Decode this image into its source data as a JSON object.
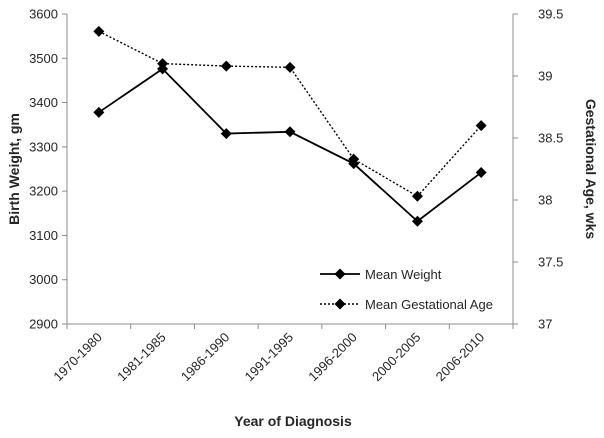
{
  "chart_data": {
    "type": "line",
    "title": "",
    "xlabel": "Year of Diagnosis",
    "ylabel": "Birth Weight, gm",
    "y2label": "Gestational Age, wks",
    "categories": [
      "1970-1980",
      "1981-1985",
      "1986-1990",
      "1991-1995",
      "1996-2000",
      "2000-2005",
      "2006-2010"
    ],
    "ylim": [
      2900,
      3600
    ],
    "y2lim": [
      37,
      39.5
    ],
    "yticks": [
      "2900",
      "3000",
      "3100",
      "3200",
      "3300",
      "3400",
      "3500",
      "3600"
    ],
    "y2ticks": [
      "37",
      "37.5",
      "38",
      "38.5",
      "39",
      "39.5"
    ],
    "grid": false,
    "legend_position": "bottom-right",
    "series": [
      {
        "name": "Mean Weight",
        "axis": "left",
        "line_style": "solid",
        "marker": "diamond",
        "color": "#000000",
        "values": [
          3378,
          3476,
          3330,
          3334,
          3262,
          3132,
          3242
        ]
      },
      {
        "name": "Mean Gestational Age",
        "axis": "right",
        "line_style": "dotted",
        "marker": "diamond",
        "color": "#000000",
        "values": [
          39.36,
          39.1,
          39.08,
          39.07,
          38.33,
          38.03,
          38.6
        ]
      }
    ]
  }
}
